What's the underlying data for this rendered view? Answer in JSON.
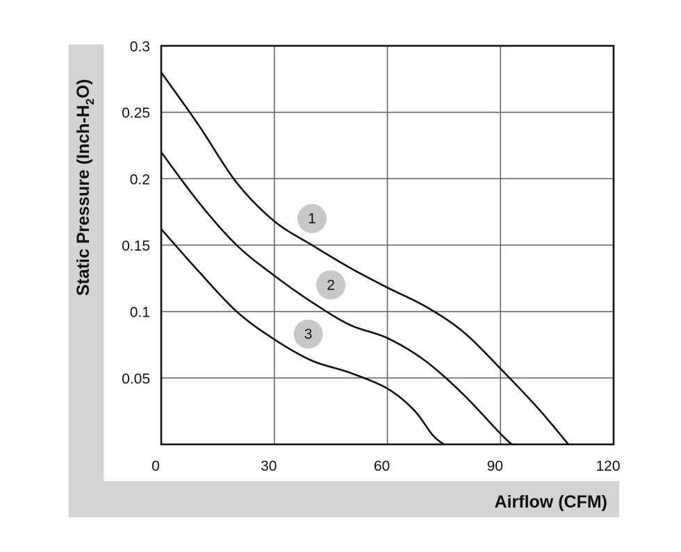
{
  "chart_data": {
    "type": "line",
    "title": "",
    "xlabel": "Airflow (CFM)",
    "ylabel_parts": [
      "Static Pressure (Inch-H",
      "2",
      "O)"
    ],
    "xlim": [
      0,
      120
    ],
    "ylim": [
      0,
      0.3
    ],
    "x_ticks": [
      "0",
      "30",
      "60",
      "90",
      "120"
    ],
    "x_tick_values": [
      0,
      30,
      60,
      90,
      120
    ],
    "y_ticks": [
      "0.3",
      "0.25",
      "0.2",
      "0.15",
      "0.1",
      "0.05"
    ],
    "y_tick_values": [
      0.3,
      0.25,
      0.2,
      0.15,
      0.1,
      0.05
    ],
    "grid": true,
    "line_color": "#111111",
    "label_badge_color": "#c8c8c8",
    "axis_band_color": "#d4d4d4",
    "series": [
      {
        "label": "1",
        "label_pos": [
          40,
          0.17
        ],
        "points": [
          [
            0,
            0.28
          ],
          [
            10,
            0.24
          ],
          [
            20,
            0.197
          ],
          [
            30,
            0.168
          ],
          [
            40,
            0.15
          ],
          [
            50,
            0.133
          ],
          [
            60,
            0.118
          ],
          [
            70,
            0.104
          ],
          [
            80,
            0.085
          ],
          [
            90,
            0.057
          ],
          [
            100,
            0.027
          ],
          [
            108,
            0.0
          ]
        ]
      },
      {
        "label": "2",
        "label_pos": [
          45,
          0.12
        ],
        "points": [
          [
            0,
            0.22
          ],
          [
            10,
            0.182
          ],
          [
            20,
            0.15
          ],
          [
            30,
            0.127
          ],
          [
            40,
            0.107
          ],
          [
            50,
            0.09
          ],
          [
            60,
            0.08
          ],
          [
            70,
            0.063
          ],
          [
            80,
            0.038
          ],
          [
            90,
            0.008
          ],
          [
            93,
            0.0
          ]
        ]
      },
      {
        "label": "3",
        "label_pos": [
          39,
          0.083
        ],
        "points": [
          [
            0,
            0.162
          ],
          [
            10,
            0.13
          ],
          [
            20,
            0.1
          ],
          [
            30,
            0.079
          ],
          [
            40,
            0.063
          ],
          [
            50,
            0.054
          ],
          [
            60,
            0.042
          ],
          [
            67,
            0.026
          ],
          [
            72,
            0.007
          ],
          [
            75,
            0.0
          ]
        ]
      }
    ]
  }
}
